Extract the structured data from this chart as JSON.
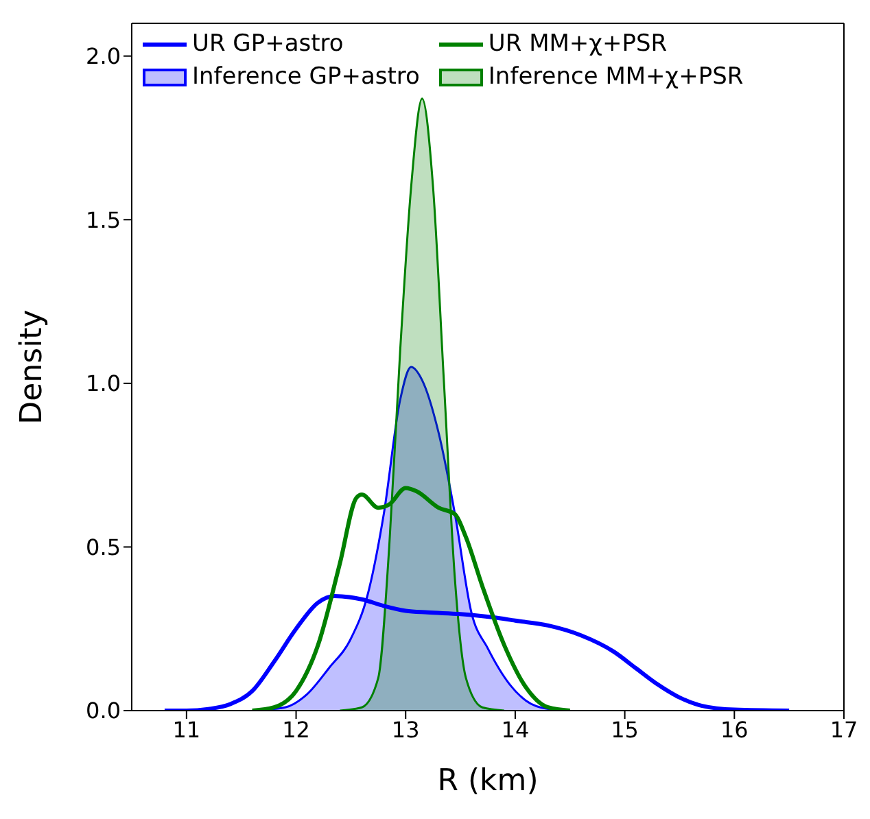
{
  "chart_data": {
    "type": "line",
    "xlabel": "R (km)",
    "ylabel": "Density",
    "xlim": [
      10.5,
      17
    ],
    "xticks": [
      11,
      12,
      13,
      14,
      15,
      16,
      17
    ],
    "ylim": [
      0,
      2.1
    ],
    "yticks": [
      {
        "value": 0,
        "label": "0.0"
      },
      0.5,
      {
        "value": 1,
        "label": "1.0"
      },
      1.5,
      {
        "value": 2,
        "label": "2.0"
      }
    ],
    "grid": false,
    "legend": "top",
    "series": [
      {
        "name": "UR GP+astro",
        "color": "#0000ff",
        "x": [
          10.8,
          11.0,
          11.2,
          11.4,
          11.6,
          11.8,
          12.0,
          12.2,
          12.35,
          12.6,
          12.8,
          13.0,
          13.2,
          13.5,
          13.8,
          14.0,
          14.3,
          14.6,
          14.9,
          15.1,
          15.3,
          15.5,
          15.7,
          16.0,
          16.5
        ],
        "values": [
          0,
          0,
          0.005,
          0.02,
          0.06,
          0.15,
          0.25,
          0.33,
          0.35,
          0.34,
          0.32,
          0.305,
          0.3,
          0.295,
          0.285,
          0.275,
          0.26,
          0.23,
          0.18,
          0.13,
          0.08,
          0.04,
          0.015,
          0.003,
          0
        ]
      },
      {
        "name": "Inference GP+astro",
        "type": "area",
        "color": "#0000ff",
        "x": [
          11.6,
          11.9,
          12.1,
          12.3,
          12.5,
          12.65,
          12.8,
          12.95,
          13.05,
          13.15,
          13.3,
          13.45,
          13.6,
          13.75,
          13.95,
          14.1,
          14.3,
          14.5
        ],
        "values": [
          0,
          0.01,
          0.05,
          0.13,
          0.22,
          0.35,
          0.6,
          0.95,
          1.05,
          1.01,
          0.85,
          0.6,
          0.3,
          0.19,
          0.08,
          0.03,
          0.005,
          0
        ]
      },
      {
        "name": "UR MM+χ+PSR",
        "color": "#008000",
        "x": [
          11.6,
          11.8,
          12.0,
          12.2,
          12.4,
          12.55,
          12.6,
          12.75,
          12.85,
          13.0,
          13.1,
          13.3,
          13.45,
          13.55,
          13.7,
          13.9,
          14.1,
          14.3,
          14.5
        ],
        "values": [
          0,
          0.01,
          0.06,
          0.2,
          0.45,
          0.65,
          0.66,
          0.62,
          0.63,
          0.68,
          0.67,
          0.62,
          0.6,
          0.53,
          0.38,
          0.2,
          0.07,
          0.01,
          0
        ]
      },
      {
        "name": "Inference MM+χ+PSR",
        "type": "area",
        "color": "#008000",
        "x": [
          12.4,
          12.6,
          12.75,
          12.85,
          12.95,
          13.05,
          13.15,
          13.25,
          13.35,
          13.45,
          13.55,
          13.7,
          13.9
        ],
        "values": [
          0,
          0.01,
          0.1,
          0.5,
          1.1,
          1.6,
          1.87,
          1.6,
          1.0,
          0.4,
          0.1,
          0.01,
          0
        ]
      }
    ]
  }
}
